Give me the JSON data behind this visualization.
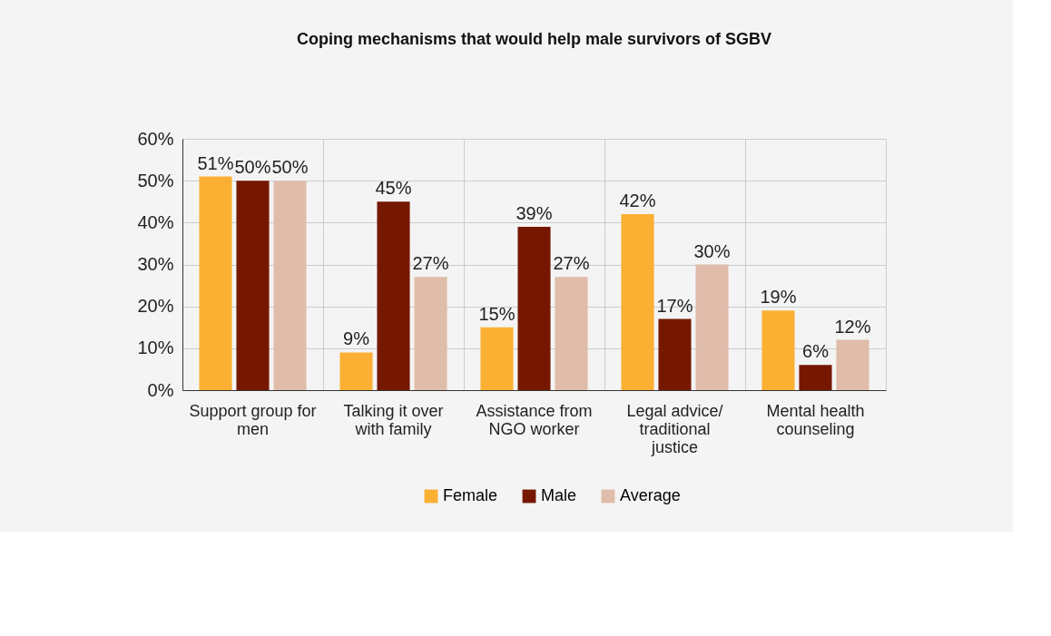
{
  "chart_data": {
    "type": "bar",
    "title": "Coping mechanisms that would help male survivors of SGBV",
    "categories": [
      "Support group for men",
      "Talking it over with family",
      "Assistance from NGO worker",
      "Legal advice/ traditional justice",
      "Mental health counseling"
    ],
    "series": [
      {
        "name": "Female",
        "color": "#fbb034",
        "values": [
          51,
          9,
          15,
          42,
          19
        ],
        "value_labels": [
          "51%",
          "9%",
          "15%",
          "42%",
          "19%"
        ]
      },
      {
        "name": "Male",
        "color": "#761800",
        "values": [
          50,
          45,
          39,
          17,
          6
        ],
        "value_labels": [
          "50%",
          "45%",
          "39%",
          "17%",
          "6%"
        ]
      },
      {
        "name": "Average",
        "color": "#e0bcaa",
        "values": [
          50,
          27,
          27,
          30,
          12
        ],
        "value_labels": [
          "50%",
          "27%",
          "27%",
          "30%",
          "12%"
        ]
      }
    ],
    "ylim": [
      0,
      60
    ],
    "yticks": [
      {
        "value": 0,
        "label": "0%"
      },
      {
        "value": 10,
        "label": "10%"
      },
      {
        "value": 20,
        "label": "20%"
      },
      {
        "value": 30,
        "label": "30%"
      },
      {
        "value": 40,
        "label": "40%"
      },
      {
        "value": 50,
        "label": "50%"
      },
      {
        "value": 60,
        "label": "60%"
      }
    ],
    "grid": true,
    "legend": "bottom"
  }
}
